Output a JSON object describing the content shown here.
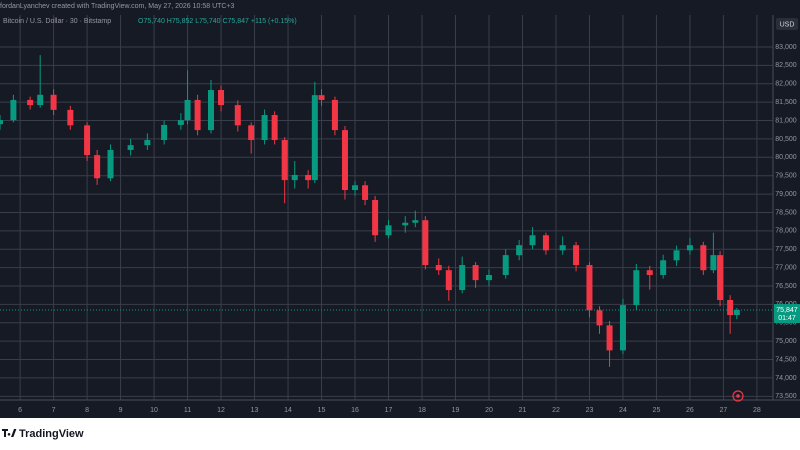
{
  "header": {
    "attribution": "fordanLyanchev created with TradingView.com, May 27, 2026 10:58 UTC+3",
    "symbol": "Bitcoin / U.S. Dollar · 30 · Bitstamp",
    "ohlc": "O75,740 H75,852 L75,740 C75,847 +115 (+0.15%)"
  },
  "currency": "USD",
  "countdown": "01:47",
  "brand": "TradingView",
  "chart_data": {
    "type": "candlestick",
    "up_color": "#089981",
    "down_color": "#f23645",
    "grid": true,
    "xlim": [
      5.4,
      28.48
    ],
    "ylim": [
      73400,
      83870
    ],
    "xticks": [
      6,
      7,
      8,
      9,
      10,
      11,
      12,
      13,
      14,
      15,
      16,
      17,
      18,
      19,
      20,
      21,
      22,
      23,
      24,
      25,
      26,
      27,
      28
    ],
    "yticks": [
      {
        "value": 73500,
        "label": "73,500"
      },
      {
        "value": 74000,
        "label": "74,000"
      },
      {
        "value": 74500,
        "label": "74,500"
      },
      {
        "value": 75000,
        "label": "75,000"
      },
      {
        "value": 75500,
        "label": "75,500"
      },
      {
        "value": 76000,
        "label": "76,000"
      },
      {
        "value": 76500,
        "label": "76,500"
      },
      {
        "value": 77000,
        "label": "77,000"
      },
      {
        "value": 77500,
        "label": "77,500"
      },
      {
        "value": 78000,
        "label": "78,000"
      },
      {
        "value": 78500,
        "label": "78,500"
      },
      {
        "value": 79000,
        "label": "79,000"
      },
      {
        "value": 79500,
        "label": "79,500"
      },
      {
        "value": 80000,
        "label": "80,000"
      },
      {
        "value": 80500,
        "label": "80,500"
      },
      {
        "value": 81000,
        "label": "81,000"
      },
      {
        "value": 81500,
        "label": "81,500"
      },
      {
        "value": 82000,
        "label": "82,000"
      },
      {
        "value": 82500,
        "label": "82,500"
      },
      {
        "value": 83000,
        "label": "83,000"
      }
    ],
    "last_price": {
      "value": 75847,
      "label": "75,847"
    },
    "x": [
      5.4,
      5.8,
      6.3,
      6.6,
      7.0,
      7.5,
      8.0,
      8.3,
      8.7,
      9.3,
      9.8,
      10.3,
      10.8,
      11.0,
      11.3,
      11.7,
      12.0,
      12.5,
      12.9,
      13.3,
      13.6,
      13.9,
      14.2,
      14.6,
      14.8,
      15.0,
      15.4,
      15.7,
      16.0,
      16.3,
      16.6,
      17.0,
      17.5,
      17.8,
      18.1,
      18.5,
      18.8,
      19.2,
      19.6,
      20.0,
      20.5,
      20.9,
      21.3,
      21.7,
      22.2,
      22.6,
      23.0,
      23.3,
      23.6,
      24.0,
      24.4,
      24.8,
      25.2,
      25.6,
      26.0,
      26.4,
      26.7,
      26.9,
      27.2,
      27.4
    ],
    "open": [
      80900,
      81010,
      81560,
      81420,
      81700,
      81290,
      80870,
      80060,
      79430,
      80200,
      80330,
      80470,
      80880,
      81010,
      81560,
      80740,
      81830,
      81420,
      80870,
      80470,
      81150,
      80470,
      79380,
      79520,
      79380,
      81690,
      81560,
      80740,
      79110,
      79240,
      78840,
      77880,
      78150,
      78220,
      78290,
      77070,
      76930,
      76390,
      77070,
      76660,
      76800,
      77340,
      77610,
      77880,
      77470,
      77610,
      77070,
      75840,
      75430,
      74750,
      75980,
      76930,
      76800,
      77200,
      77470,
      77610,
      76930,
      77340,
      76120,
      75710
    ],
    "high": [
      81150,
      81700,
      81650,
      82780,
      81850,
      81400,
      80950,
      80200,
      80350,
      80500,
      80650,
      81000,
      81200,
      82370,
      81700,
      82100,
      81950,
      81550,
      80950,
      81300,
      81250,
      80550,
      79900,
      79650,
      82050,
      81850,
      81650,
      80850,
      79350,
      79350,
      78950,
      78300,
      78400,
      78550,
      78400,
      77250,
      77050,
      77300,
      77150,
      76950,
      77500,
      77750,
      78100,
      77950,
      77850,
      77700,
      77150,
      75950,
      75550,
      76150,
      77100,
      77050,
      77350,
      77600,
      77800,
      77700,
      77950,
      77450,
      76250,
      75900
    ],
    "low": [
      80750,
      80950,
      81300,
      81350,
      81150,
      80750,
      79900,
      79250,
      79350,
      80050,
      80200,
      80350,
      80750,
      80900,
      80600,
      80650,
      81250,
      80700,
      80100,
      80350,
      80350,
      78750,
      79150,
      79150,
      79300,
      81400,
      80600,
      78850,
      78950,
      78700,
      77700,
      77800,
      77950,
      78100,
      76950,
      76800,
      76100,
      76300,
      76450,
      76500,
      76700,
      77200,
      77500,
      77350,
      77350,
      76900,
      75650,
      75200,
      74300,
      74650,
      75850,
      76400,
      76700,
      77050,
      77350,
      76800,
      76850,
      75950,
      75200,
      75600
    ],
    "close": [
      81010,
      81560,
      81420,
      81700,
      81290,
      80870,
      80060,
      79430,
      80200,
      80330,
      80470,
      80880,
      81010,
      81560,
      80740,
      81830,
      81420,
      80870,
      80470,
      81150,
      80470,
      79380,
      79520,
      79380,
      81690,
      81560,
      80740,
      79110,
      79240,
      78840,
      77880,
      78150,
      78220,
      78290,
      77070,
      76930,
      76390,
      77070,
      76660,
      76800,
      77340,
      77610,
      77880,
      77470,
      77610,
      77070,
      75840,
      75430,
      74750,
      75980,
      76930,
      76800,
      77200,
      77470,
      77610,
      76930,
      77340,
      76120,
      75710,
      75847
    ]
  }
}
